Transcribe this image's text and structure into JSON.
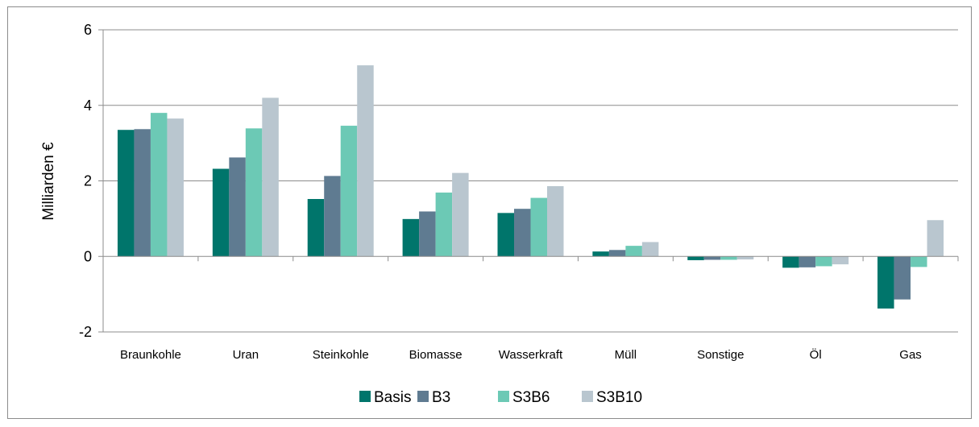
{
  "chart_data": {
    "type": "bar",
    "title": "",
    "xlabel": "",
    "ylabel": "Milliarden €",
    "ylim": [
      -2,
      6
    ],
    "yticks": [
      -2,
      0,
      2,
      4,
      6
    ],
    "grid": true,
    "legend_position": "bottom",
    "categories": [
      "Braunkohle",
      "Uran",
      "Steinkohle",
      "Biomasse",
      "Wasserkraft",
      "Müll",
      "Sonstige",
      "Öl",
      "Gas"
    ],
    "series": [
      {
        "name": "Basis",
        "color": "#00756b",
        "values": [
          3.35,
          2.32,
          1.52,
          0.99,
          1.15,
          0.13,
          -0.1,
          -0.3,
          -1.38
        ]
      },
      {
        "name": "B3",
        "color": "#5f7b91",
        "values": [
          3.37,
          2.62,
          2.13,
          1.19,
          1.26,
          0.17,
          -0.09,
          -0.29,
          -1.14
        ]
      },
      {
        "name": "S3B6",
        "color": "#6cc9b5",
        "values": [
          3.8,
          3.39,
          3.46,
          1.69,
          1.55,
          0.28,
          -0.09,
          -0.26,
          -0.28
        ]
      },
      {
        "name": "S3B10",
        "color": "#b9c6cf",
        "values": [
          3.65,
          4.2,
          5.06,
          2.21,
          1.86,
          0.38,
          -0.08,
          -0.21,
          0.96
        ]
      }
    ]
  }
}
